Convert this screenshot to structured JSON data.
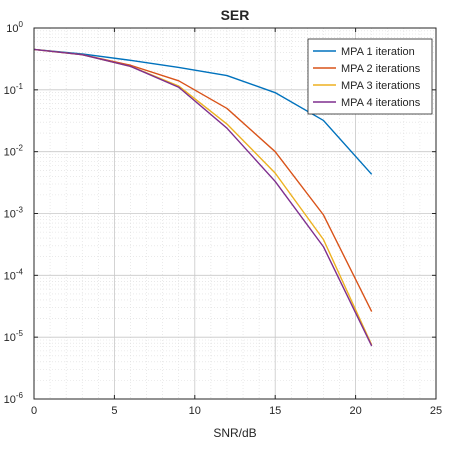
{
  "chart_data": {
    "type": "line",
    "title": "SER",
    "xlabel": "SNR/dB",
    "ylabel": "",
    "xlim": [
      0,
      25
    ],
    "ylim": [
      1e-06,
      1
    ],
    "yscale": "log",
    "grid": true,
    "minor_grid": true,
    "legend_position": "top-right",
    "x_ticks": [
      {
        "value": 0,
        "label": "0"
      },
      {
        "value": 5,
        "label": "5"
      },
      {
        "value": 10,
        "label": "10"
      },
      {
        "value": 15,
        "label": "15"
      },
      {
        "value": 20,
        "label": "20"
      },
      {
        "value": 25,
        "label": "25"
      }
    ],
    "y_ticks": [
      {
        "value": 1,
        "mantissa": "10",
        "exponent": "0"
      },
      {
        "value": 0.1,
        "mantissa": "10",
        "exponent": "-1"
      },
      {
        "value": 0.01,
        "mantissa": "10",
        "exponent": "-2"
      },
      {
        "value": 0.001,
        "mantissa": "10",
        "exponent": "-3"
      },
      {
        "value": 0.0001,
        "mantissa": "10",
        "exponent": "-4"
      },
      {
        "value": 1e-05,
        "mantissa": "10",
        "exponent": "-5"
      },
      {
        "value": 1e-06,
        "mantissa": "10",
        "exponent": "-6"
      }
    ],
    "x": [
      0,
      3,
      6,
      9,
      12,
      15,
      18,
      21
    ],
    "series": [
      {
        "name": "MPA  1 iteration",
        "color": "#0072BD",
        "values": [
          0.45,
          0.38,
          0.3,
          0.23,
          0.17,
          0.09,
          0.032,
          0.0043
        ]
      },
      {
        "name": "MPA  2 iterations",
        "color": "#D95319",
        "values": [
          0.45,
          0.37,
          0.25,
          0.14,
          0.05,
          0.01,
          0.00095,
          2.6e-05
        ]
      },
      {
        "name": "MPA  3 iterations",
        "color": "#EDB120",
        "values": [
          0.45,
          0.37,
          0.24,
          0.115,
          0.028,
          0.0045,
          0.00038,
          7.5e-06
        ]
      },
      {
        "name": "MPA  4 iterations",
        "color": "#7E2F8E",
        "values": [
          0.45,
          0.37,
          0.24,
          0.11,
          0.024,
          0.0033,
          0.00029,
          7.2e-06
        ]
      }
    ]
  }
}
